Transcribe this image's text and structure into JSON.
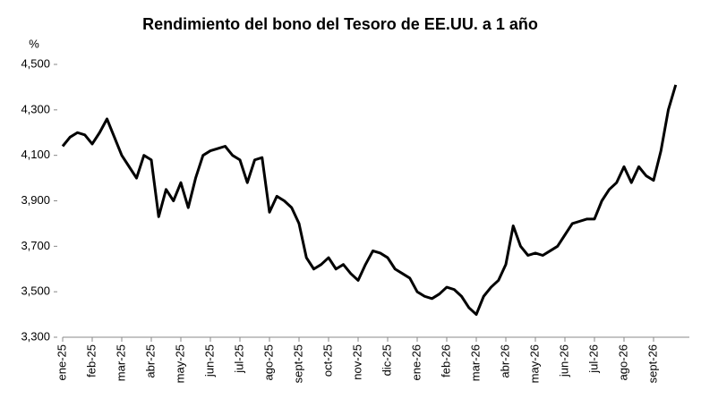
{
  "chart_data": {
    "type": "line",
    "title": "Rendimiento del bono del Tesoro de EE.UU. a 1 año",
    "y_label": "%",
    "categories": [
      "ene-25",
      null,
      null,
      null,
      "feb-25",
      null,
      null,
      null,
      "mar-25",
      null,
      null,
      null,
      "abr-25",
      null,
      null,
      null,
      "may-25",
      null,
      null,
      null,
      "jun-25",
      null,
      null,
      null,
      "jul-25",
      null,
      null,
      null,
      "ago-25",
      null,
      null,
      null,
      "sept-25",
      null,
      null,
      null,
      "oct-25",
      null,
      null,
      null,
      "nov-25",
      null,
      null,
      null,
      "dic-25",
      null,
      null,
      null,
      "ene-26",
      null,
      null,
      null,
      "feb-26",
      null,
      null,
      null,
      "mar-26",
      null,
      null,
      null,
      "abr-26",
      null,
      null,
      null,
      "may-26",
      null,
      null,
      null,
      "jun-26",
      null,
      null,
      null,
      "jul-26",
      null,
      null,
      null,
      "ago-26",
      null,
      null,
      null,
      "sept-26",
      null,
      null,
      null
    ],
    "series": [
      {
        "name": "Rendimiento",
        "color": "#000000",
        "values": [
          4140,
          4180,
          4200,
          4190,
          4150,
          4200,
          4260,
          4180,
          4100,
          4050,
          4000,
          4100,
          4080,
          3830,
          3950,
          3900,
          3980,
          3870,
          4000,
          4100,
          4120,
          4130,
          4140,
          4100,
          4080,
          3980,
          4080,
          4090,
          3850,
          3920,
          3900,
          3870,
          3800,
          3650,
          3600,
          3620,
          3650,
          3600,
          3620,
          3580,
          3550,
          3620,
          3680,
          3670,
          3650,
          3600,
          3580,
          3560,
          3500,
          3480,
          3470,
          3490,
          3520,
          3510,
          3480,
          3430,
          3400,
          3480,
          3520,
          3550,
          3620,
          3790,
          3700,
          3660,
          3670,
          3660,
          3680,
          3700,
          3750,
          3800,
          3810,
          3820,
          3820,
          3900,
          3950,
          3980,
          4050,
          3980,
          4050,
          4010,
          3990,
          4120,
          4300,
          4410
        ]
      }
    ],
    "ylim": [
      3300,
      4500
    ],
    "yticks": [
      {
        "value": 3300,
        "label": "3,300"
      },
      {
        "value": 3500,
        "label": "3,500"
      },
      {
        "value": 3700,
        "label": "3,700"
      },
      {
        "value": 3900,
        "label": "3,900"
      },
      {
        "value": 4100,
        "label": "4,100"
      },
      {
        "value": 4300,
        "label": "4,300"
      },
      {
        "value": 4500,
        "label": "4,500"
      }
    ],
    "grid": false
  }
}
